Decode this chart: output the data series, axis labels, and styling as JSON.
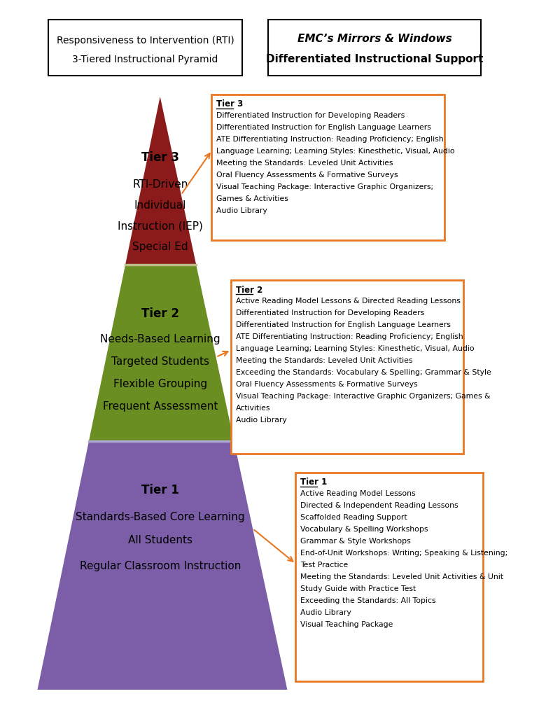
{
  "bg_color": "#ffffff",
  "title_left_line1": "Responsiveness to Intervention (RTI)",
  "title_left_line2": "3-Tiered Instructional Pyramid",
  "title_right_line1": "EMC’s Mirrors & Windows",
  "title_right_line2": "Differentiated Instructional Support",
  "tier3_color": "#8B1A1A",
  "tier2_color": "#6B8E23",
  "tier1_color": "#7B5EA7",
  "box_border_color": "#E87722",
  "tier3_box_title": "Tier 3",
  "tier3_box_items": [
    "Differentiated Instruction for Developing Readers",
    "Differentiated Instruction for English Language Learners",
    "ATE Differentiating Instruction: Reading Proficiency; English",
    "Language Learning; Learning Styles: Kinesthetic, Visual, Audio",
    "Meeting the Standards: Leveled Unit Activities",
    "Oral Fluency Assessments & Formative Surveys",
    "Visual Teaching Package: Interactive Graphic Organizers;",
    "Games & Activities",
    "Audio Library"
  ],
  "tier2_box_title": "Tier 2",
  "tier2_box_items": [
    "Active Reading Model Lessons & Directed Reading Lessons",
    "Differentiated Instruction for Developing Readers",
    "Differentiated Instruction for English Language Learners",
    "ATE Differentiating Instruction: Reading Proficiency; English",
    "Language Learning; Learning Styles: Kinesthetic, Visual, Audio",
    "Meeting the Standards: Leveled Unit Activities",
    "Exceeding the Standards: Vocabulary & Spelling; Grammar & Style",
    "Oral Fluency Assessments & Formative Surveys",
    "Visual Teaching Package: Interactive Graphic Organizers; Games &",
    "Activities",
    "Audio Library"
  ],
  "tier1_box_title": "Tier 1",
  "tier1_box_items": [
    "Active Reading Model Lessons",
    "Directed & Independent Reading Lessons",
    "Scaffolded Reading Support",
    "Vocabulary & Spelling Workshops",
    "Grammar & Style Workshops",
    "End-of-Unit Workshops: Writing; Speaking & Listening;",
    "Test Practice",
    "Meeting the Standards: Leveled Unit Activities & Unit",
    "Study Guide with Practice Test",
    "Exceeding the Standards: All Topics",
    "Audio Library",
    "Visual Teaching Package"
  ]
}
